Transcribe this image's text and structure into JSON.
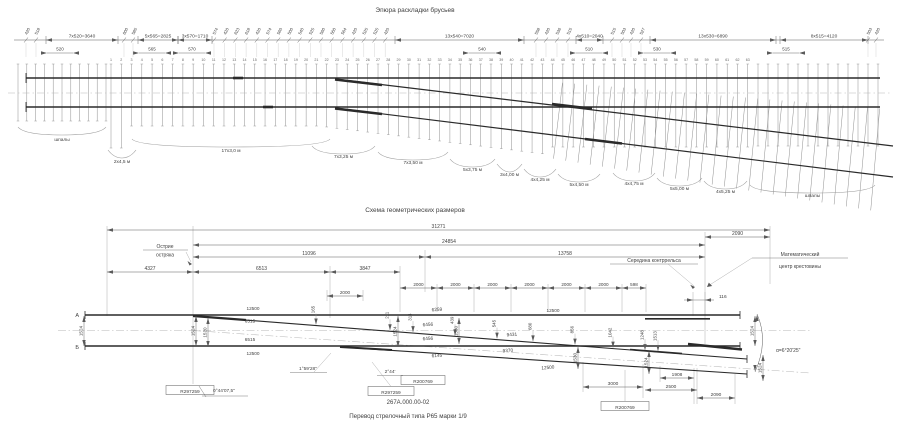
{
  "page": {
    "background": "#ffffff",
    "ink": "#3f3f3f"
  },
  "top": {
    "title": "Эпюра раскладки брусьев",
    "left_label": "шпалы",
    "right_label": "шпалы",
    "chain": {
      "segments": [
        "7х520=3640",
        "5х565=2825",
        "3х570=1710",
        "13х540=7020",
        "4х510=2040",
        "13х530=6890",
        "8х515=4120"
      ],
      "subs": [
        "520",
        "565",
        "570",
        "540",
        "510",
        "530",
        "515"
      ],
      "ticks_left": [
        "420",
        "518"
      ],
      "ticks_mid1": [
        "600",
        "585"
      ],
      "cluster": [
        "574",
        "420",
        "623",
        "618",
        "420",
        "574",
        "560",
        "500",
        "540",
        "525",
        "560",
        "560",
        "564",
        "420",
        "525",
        "525",
        "420"
      ],
      "ticks_mid2": [
        "558",
        "420",
        "536",
        "515"
      ],
      "ticks_mid3": [
        "515",
        "503",
        "420",
        "527"
      ],
      "ticks_right": [
        "503",
        "420"
      ]
    },
    "sleepers": {
      "numbered_count": 63
    },
    "groups": [
      "2х4,5 м",
      "17х3,0 м",
      "7х3,25 м",
      "7х3,50 м",
      "5х3,75 м",
      "3х4,00 м",
      "4х4,25 м",
      "5х4,50 м",
      "4х4,75 м",
      "5х5,00 м",
      "4х5,25 м"
    ]
  },
  "bottom": {
    "title": "Схема геометрических размеров",
    "callouts": {
      "blade": [
        "Острие",
        "остряка"
      ],
      "guard_mid": "Середина контррельса",
      "frog_center": [
        "Математический",
        "центр крестовины"
      ]
    },
    "dims_overall": [
      "31271",
      "24854",
      "11096",
      "13758",
      "2090"
    ],
    "dims_row": [
      "4327",
      "6513",
      "3847"
    ],
    "dims_2000": [
      "2000",
      "2000",
      "2000",
      "2000",
      "2000",
      "2000"
    ],
    "dim_598": "598",
    "dim_116": "116",
    "dim_2000_small": "2000",
    "rail_labels": [
      "12500",
      "6515",
      "6515",
      "12500",
      "6259",
      "6456",
      "6456",
      "6145",
      "9431",
      "9370",
      "12500",
      "12500"
    ],
    "offsets": [
      "165",
      "211",
      "314",
      "439",
      "545",
      "680",
      "856",
      "1042",
      "1248",
      "1513"
    ],
    "gauges": [
      "1524",
      "1524",
      "1520",
      "1524",
      "1530",
      "1530",
      "1524",
      "1524",
      "1524"
    ],
    "angles": [
      "0°44'07,5\"",
      "1°59'28\"",
      "2°44'",
      "α=6°20'25\""
    ],
    "radii": [
      "R297259",
      "R297259",
      "R200769",
      "R200769"
    ],
    "dims_end": [
      "3000",
      "1908",
      "2500",
      "2090"
    ],
    "point_letters": [
      "А",
      "Б"
    ]
  },
  "caption": {
    "doc_number": "267А.000.00-02",
    "title": "Перевод стрелочный типа Р65 марки 1/9"
  }
}
